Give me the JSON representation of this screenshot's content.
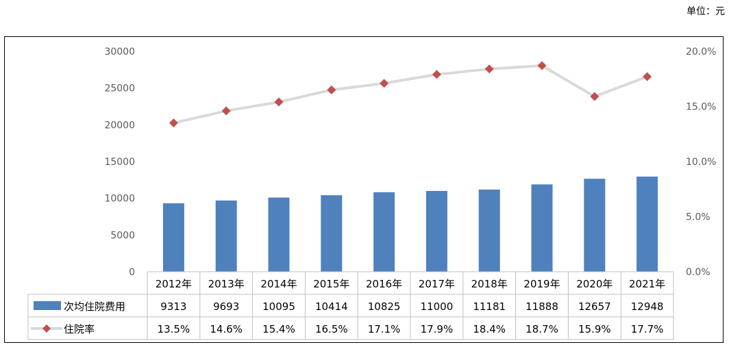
{
  "unit_label": "单位：元",
  "chart_data": {
    "type": "bar",
    "categories": [
      "2012年",
      "2013年",
      "2014年",
      "2015年",
      "2016年",
      "2017年",
      "2018年",
      "2019年",
      "2020年",
      "2021年"
    ],
    "series": [
      {
        "name": "次均住院费用",
        "type": "bar",
        "axis": "left",
        "color": "#4f81bd",
        "values": [
          9313,
          9693,
          10095,
          10414,
          10825,
          11000,
          11181,
          11888,
          12657,
          12948
        ],
        "labels": [
          "9313",
          "9693",
          "10095",
          "10414",
          "10825",
          "11000",
          "11181",
          "11888",
          "12657",
          "12948"
        ]
      },
      {
        "name": "住院率",
        "type": "line",
        "axis": "right",
        "color": "#c0504d",
        "line_color": "#d9d9d9",
        "values": [
          13.5,
          14.6,
          15.4,
          16.5,
          17.1,
          17.9,
          18.4,
          18.7,
          15.9,
          17.7
        ],
        "labels": [
          "13.5%",
          "14.6%",
          "15.4%",
          "16.5%",
          "17.1%",
          "17.9%",
          "18.4%",
          "18.7%",
          "15.9%",
          "17.7%"
        ]
      }
    ],
    "y_left": {
      "min": 0,
      "max": 30000,
      "ticks": [
        "0",
        "5000",
        "10000",
        "15000",
        "20000",
        "25000",
        "30000"
      ]
    },
    "y_right": {
      "min": 0,
      "max": 20,
      "ticks": [
        "0.0%",
        "5.0%",
        "10.0%",
        "15.0%",
        "20.0%"
      ]
    },
    "grid": false,
    "legend": "data-table"
  }
}
